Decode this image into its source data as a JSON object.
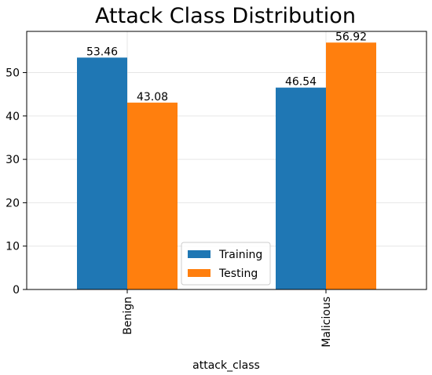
{
  "chart_data": {
    "type": "bar",
    "title": "Attack Class Distribution",
    "xlabel": "attack_class",
    "ylabel": "",
    "categories": [
      "Benign",
      "Malicious"
    ],
    "series": [
      {
        "name": "Training",
        "values": [
          53.46,
          46.54
        ],
        "color": "#1f77b4"
      },
      {
        "name": "Testing",
        "values": [
          43.08,
          56.92
        ],
        "color": "#ff7f0e"
      }
    ],
    "data_labels": [
      [
        "53.46",
        "46.54"
      ],
      [
        "43.08",
        "56.92"
      ]
    ],
    "ylim": [
      0,
      59.5
    ],
    "yticks": [
      "0",
      "10",
      "20",
      "30",
      "40",
      "50"
    ],
    "grid": true,
    "legend_position": "lower-center"
  }
}
